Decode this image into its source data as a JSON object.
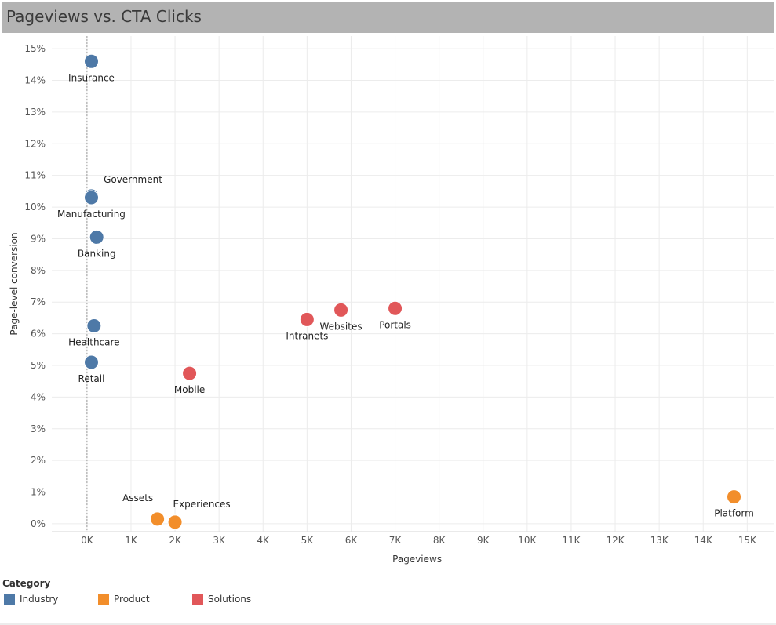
{
  "header": {
    "title": "Pageviews vs. CTA Clicks"
  },
  "legend": {
    "title": "Category",
    "items": [
      {
        "label": "Industry",
        "color": "#4e79a7"
      },
      {
        "label": "Product",
        "color": "#f28e2b"
      },
      {
        "label": "Solutions",
        "color": "#e15759"
      }
    ]
  },
  "chart_data": {
    "type": "scatter",
    "title": "Pageviews vs. CTA Clicks",
    "xlabel": "Pageviews",
    "ylabel": "Page-level conversion",
    "xlim": [
      -800,
      15600
    ],
    "ylim": [
      -0.25,
      15.4
    ],
    "x_ticks": [
      0,
      1000,
      2000,
      3000,
      4000,
      5000,
      6000,
      7000,
      8000,
      9000,
      10000,
      11000,
      12000,
      13000,
      14000,
      15000
    ],
    "x_tick_labels": [
      "0K",
      "1K",
      "2K",
      "3K",
      "4K",
      "5K",
      "6K",
      "7K",
      "8K",
      "9K",
      "10K",
      "11K",
      "12K",
      "13K",
      "14K",
      "15K"
    ],
    "y_ticks": [
      0,
      1,
      2,
      3,
      4,
      5,
      6,
      7,
      8,
      9,
      10,
      11,
      12,
      13,
      14,
      15
    ],
    "y_tick_labels": [
      "0%",
      "1%",
      "2%",
      "3%",
      "4%",
      "5%",
      "6%",
      "7%",
      "8%",
      "9%",
      "10%",
      "11%",
      "12%",
      "13%",
      "14%",
      "15%"
    ],
    "grid": true,
    "legend_position": "bottom-left",
    "series": [
      {
        "name": "Industry",
        "color": "#4e79a7",
        "points": [
          {
            "label": "Insurance",
            "x": 100,
            "y": 14.6
          },
          {
            "label": "Government",
            "x": 100,
            "y": 10.35
          },
          {
            "label": "Manufacturing",
            "x": 100,
            "y": 10.3
          },
          {
            "label": "Banking",
            "x": 220,
            "y": 9.05
          },
          {
            "label": "Healthcare",
            "x": 160,
            "y": 6.25
          },
          {
            "label": "Retail",
            "x": 100,
            "y": 5.1
          }
        ]
      },
      {
        "name": "Product",
        "color": "#f28e2b",
        "points": [
          {
            "label": "Assets",
            "x": 1600,
            "y": 0.15
          },
          {
            "label": "Experiences",
            "x": 2000,
            "y": 0.05
          },
          {
            "label": "Platform",
            "x": 14700,
            "y": 0.85
          }
        ]
      },
      {
        "name": "Solutions",
        "color": "#e15759",
        "points": [
          {
            "label": "Mobile",
            "x": 2330,
            "y": 4.75
          },
          {
            "label": "Intranets",
            "x": 5000,
            "y": 6.45
          },
          {
            "label": "Websites",
            "x": 5770,
            "y": 6.75
          },
          {
            "label": "Portals",
            "x": 7000,
            "y": 6.8
          }
        ]
      }
    ]
  }
}
